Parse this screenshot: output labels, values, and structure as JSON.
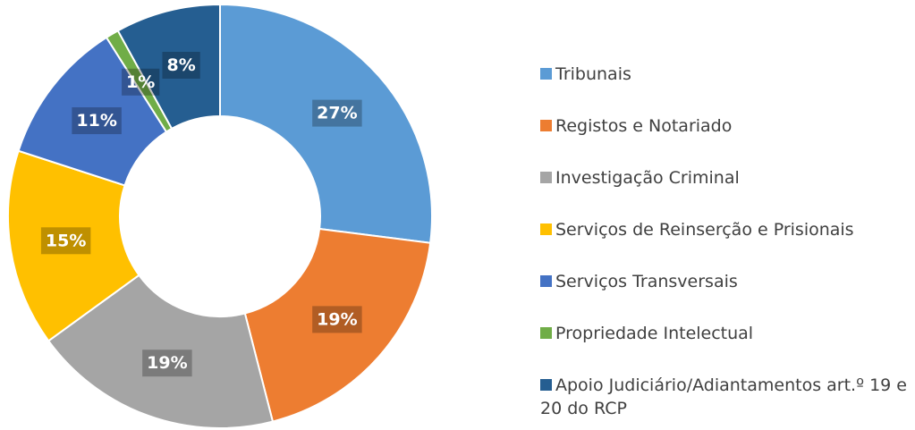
{
  "chart_data": {
    "type": "donut",
    "categories": [
      "Tribunais",
      "Registos e Notariado",
      "Investigação Criminal",
      "Serviços de Reinserção e Prisionais",
      "Serviços Transversais",
      "Propriedade Intelectual",
      "Apoio Judiciário/Adiantamentos art.º 19 e 20 do RCP"
    ],
    "values": [
      27,
      19,
      19,
      15,
      11,
      1,
      8
    ],
    "value_labels": [
      "27%",
      "19%",
      "19%",
      "15%",
      "11%",
      "1%",
      "8%"
    ],
    "colors": [
      "#5b9bd5",
      "#ed7d31",
      "#a5a5a5",
      "#ffc000",
      "#4472c4",
      "#70ad47",
      "#255e91"
    ],
    "legend": "right"
  }
}
